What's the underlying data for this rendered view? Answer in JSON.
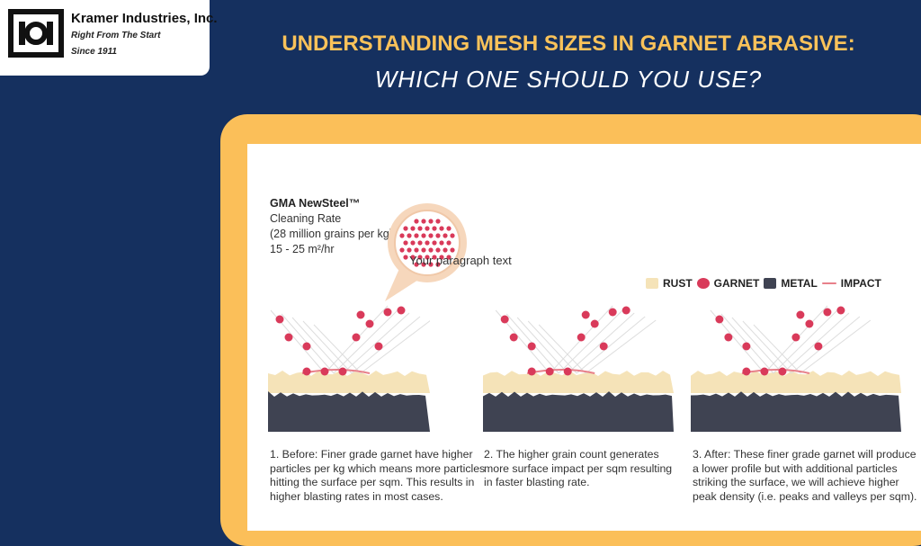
{
  "brand": {
    "name": "Kramer Industries, Inc.",
    "tagline": "Right From The Start",
    "since": "Since  1911"
  },
  "header": {
    "title_line1": "UNDERSTANDING MESH SIZES IN GARNET ABRASIVE:",
    "title_line2": "WHICH ONE SHOULD YOU USE?"
  },
  "product": {
    "name": "GMA NewSteel™",
    "label": "Cleaning Rate",
    "grains": "(28 million grains per kg)",
    "rate": "15 - 25 m²/hr"
  },
  "placeholder_text": "Your paragraph text",
  "legend": [
    {
      "label": "RUST",
      "color": "#f5e3b8"
    },
    {
      "label": "GARNET",
      "color": "#d93a5a"
    },
    {
      "label": "METAL",
      "color": "#3f4352"
    },
    {
      "label": "IMPACT",
      "color": "#e8808a"
    }
  ],
  "steps": [
    {
      "lines": [
        "1. Before: Finer grade garnet have higher",
        "particles per kg which means more particles",
        "hitting the surface per sqm. This results in",
        "higher blasting rates in most cases."
      ]
    },
    {
      "lines": [
        "2. The higher grain count generates",
        "more surface impact per sqm resulting",
        "in faster blasting rate."
      ]
    },
    {
      "lines": [
        "3. After: These finer grade garnet will produce",
        "a lower profile but with additional particles",
        "striking the surface, we will achieve higher",
        "peak density (i.e. peaks and valleys per sqm)."
      ]
    }
  ]
}
